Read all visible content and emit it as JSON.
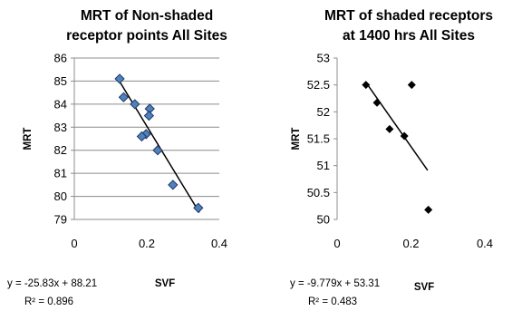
{
  "chart_data": [
    {
      "type": "scatter",
      "title": [
        "MRT of Non-shaded",
        "receptor points All Sites"
      ],
      "xlabel": "SVF",
      "ylabel": "MRT",
      "xlim": [
        0,
        0.4
      ],
      "ylim": [
        79,
        86
      ],
      "x_ticks": [
        "0",
        "0.2",
        "0.4"
      ],
      "y_ticks": [
        "79",
        "80",
        "81",
        "82",
        "83",
        "84",
        "85",
        "86"
      ],
      "grid": "horizontal",
      "marker": "square",
      "marker_color": "#4f81bd",
      "points": [
        {
          "x": 0.125,
          "y": 85.1
        },
        {
          "x": 0.136,
          "y": 84.3
        },
        {
          "x": 0.167,
          "y": 84.0
        },
        {
          "x": 0.208,
          "y": 83.8
        },
        {
          "x": 0.206,
          "y": 83.5
        },
        {
          "x": 0.198,
          "y": 82.7
        },
        {
          "x": 0.186,
          "y": 82.6
        },
        {
          "x": 0.23,
          "y": 82.0
        },
        {
          "x": 0.272,
          "y": 80.5
        },
        {
          "x": 0.342,
          "y": 79.5
        }
      ],
      "trendline": {
        "slope": -25.83,
        "intercept": 88.21,
        "x_range": [
          0.12,
          0.345
        ]
      },
      "equation": "y = -25.83x + 88.21",
      "r2_label": "R² = 0.896"
    },
    {
      "type": "scatter",
      "title": [
        "MRT of shaded receptors",
        "at 1400 hrs All Sites"
      ],
      "xlabel": "SVF",
      "ylabel": "MRT",
      "xlim": [
        0,
        0.4
      ],
      "ylim": [
        50,
        53
      ],
      "x_ticks": [
        "0",
        "0.2",
        "0.4"
      ],
      "y_ticks": [
        "50",
        "50.5",
        "51",
        "51.5",
        "52",
        "52.5",
        "53"
      ],
      "grid": "none",
      "marker": "diamond",
      "marker_color": "#000000",
      "points": [
        {
          "x": 0.078,
          "y": 52.5
        },
        {
          "x": 0.108,
          "y": 52.17
        },
        {
          "x": 0.142,
          "y": 51.68
        },
        {
          "x": 0.182,
          "y": 51.55
        },
        {
          "x": 0.202,
          "y": 52.5
        },
        {
          "x": 0.247,
          "y": 50.18
        }
      ],
      "trendline": {
        "slope": -9.779,
        "intercept": 53.31,
        "x_range": [
          0.08,
          0.245
        ]
      },
      "equation": "y = -9.779x + 53.31",
      "r2_label": "R² = 0.483"
    }
  ]
}
